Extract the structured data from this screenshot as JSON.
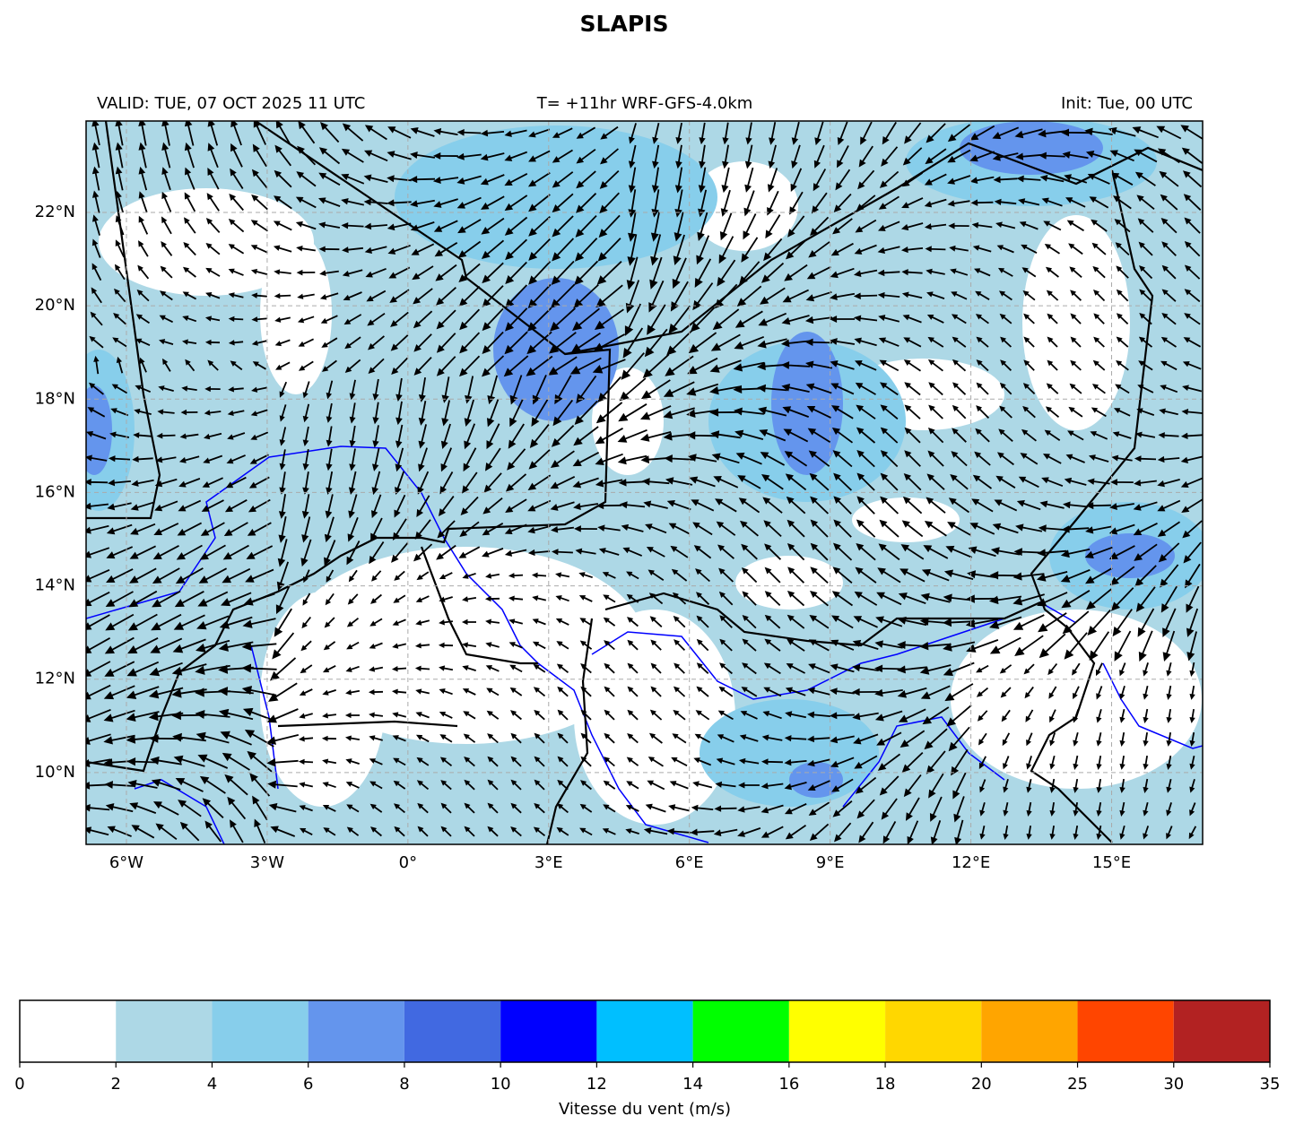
{
  "title": "SLAPIS",
  "header": {
    "valid": "VALID: TUE, 07 OCT 2025 11 UTC",
    "run": "T= +11hr WRF-GFS-4.0km",
    "init": "Init: Tue, 00 UTC"
  },
  "map": {
    "lonlim": [
      -6.86,
      16.94
    ],
    "latlim": [
      8.46,
      23.96
    ],
    "xticks": [
      {
        "value": -6,
        "label": "6°W"
      },
      {
        "value": -3,
        "label": "3°W"
      },
      {
        "value": 0,
        "label": "0°"
      },
      {
        "value": 3,
        "label": "3°E"
      },
      {
        "value": 6,
        "label": "6°E"
      },
      {
        "value": 9,
        "label": "9°E"
      },
      {
        "value": 12,
        "label": "12°E"
      },
      {
        "value": 15,
        "label": "15°E"
      }
    ],
    "yticks": [
      {
        "value": 10,
        "label": "10°N"
      },
      {
        "value": 12,
        "label": "12°N"
      },
      {
        "value": 14,
        "label": "14°N"
      },
      {
        "value": 16,
        "label": "16°N"
      },
      {
        "value": 18,
        "label": "18°N"
      },
      {
        "value": 20,
        "label": "20°N"
      },
      {
        "value": 22,
        "label": "22°N"
      }
    ],
    "grid": true
  },
  "colorbar": {
    "label": "Vitesse du vent (m/s)",
    "bounds": [
      0,
      2,
      4,
      6,
      8,
      10,
      12,
      14,
      16,
      18,
      20,
      25,
      30,
      35
    ],
    "colors": [
      "#ffffff",
      "#add8e6",
      "#87ceeb",
      "#6495ed",
      "#4169e1",
      "#0000ff",
      "#00bfff",
      "#00ff00",
      "#ffff00",
      "#ffd700",
      "#ffa500",
      "#ff4500",
      "#b22222"
    ]
  }
}
